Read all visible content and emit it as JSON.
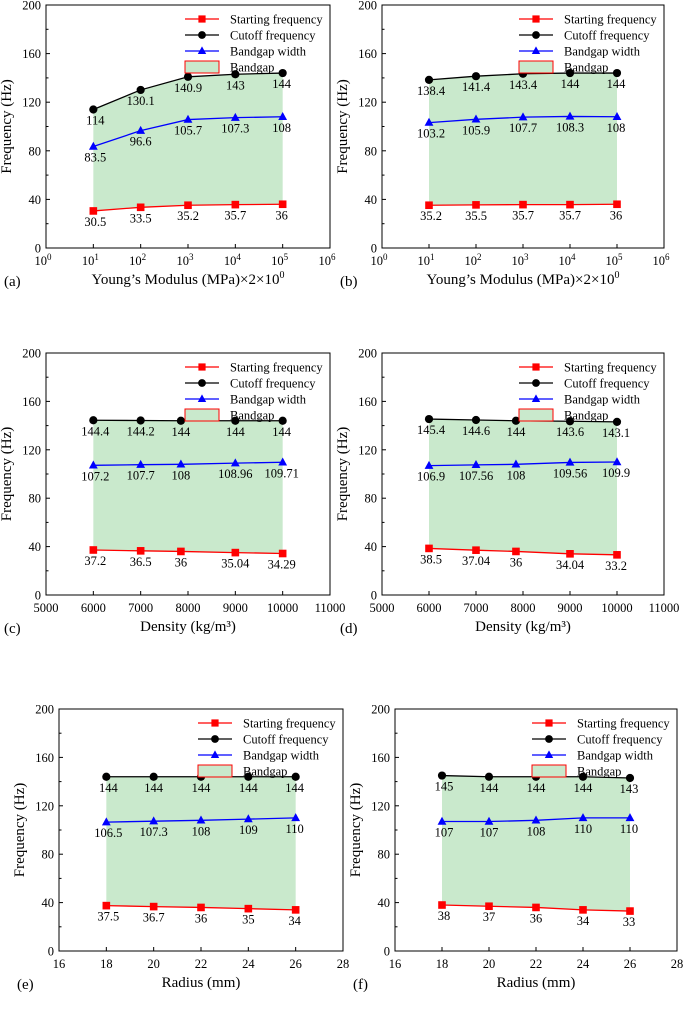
{
  "legend": {
    "starting": "Starting frequency",
    "cutoff": "Cutoff frequency",
    "width": "Bandgap width",
    "bandgap": "Bandgap"
  },
  "colors": {
    "starting": "#ff0000",
    "cutoff": "#000000",
    "width": "#0000ff",
    "bandgap_fill": "#c9e9cc",
    "bandgap_edge": "#ff0000"
  },
  "chart_data": [
    {
      "id": "a",
      "panel_label": "(a)",
      "type": "line",
      "xscale": "log",
      "ylabel": "Frequency (Hz)",
      "xlabel": "Young’s Modulus (MPa)×2×10",
      "xlabel_sup": "0",
      "xlim": [
        0,
        6
      ],
      "ylim": [
        0,
        200
      ],
      "xticks": [
        0,
        1,
        2,
        3,
        4,
        5,
        6
      ],
      "xtick_labels": [
        "10",
        "10",
        "10",
        "10",
        "10",
        "10",
        "10"
      ],
      "xtick_sups": [
        "0",
        "1",
        "2",
        "3",
        "4",
        "5",
        "6"
      ],
      "yticks": [
        0,
        40,
        80,
        120,
        160,
        200
      ],
      "x": [
        1,
        2,
        3,
        4,
        5
      ],
      "series": [
        {
          "key": "cutoff",
          "values": [
            114,
            130.1,
            140.9,
            143,
            144
          ],
          "labels": [
            "114",
            "130.1",
            "140.9",
            "143",
            "144"
          ]
        },
        {
          "key": "width",
          "values": [
            83.5,
            96.6,
            105.7,
            107.3,
            108
          ],
          "labels": [
            "83.5",
            "96.6",
            "105.7",
            "107.3",
            "108"
          ]
        },
        {
          "key": "starting",
          "values": [
            30.5,
            33.5,
            35.2,
            35.7,
            36
          ],
          "labels": [
            "30.5",
            "33.5",
            "35.2",
            "35.7",
            "36"
          ]
        }
      ]
    },
    {
      "id": "b",
      "panel_label": "(b)",
      "type": "line",
      "xscale": "log",
      "ylabel": "Frequency (Hz)",
      "xlabel": "Young’s Modulus (MPa)×2×10",
      "xlabel_sup": "0",
      "xlim": [
        0,
        6
      ],
      "ylim": [
        0,
        200
      ],
      "xticks": [
        0,
        1,
        2,
        3,
        4,
        5,
        6
      ],
      "xtick_labels": [
        "10",
        "10",
        "10",
        "10",
        "10",
        "10",
        "10"
      ],
      "xtick_sups": [
        "0",
        "1",
        "2",
        "3",
        "4",
        "5",
        "6"
      ],
      "yticks": [
        0,
        40,
        80,
        120,
        160,
        200
      ],
      "x": [
        1,
        2,
        3,
        4,
        5
      ],
      "series": [
        {
          "key": "cutoff",
          "values": [
            138.4,
            141.4,
            143.4,
            144,
            144
          ],
          "labels": [
            "138.4",
            "141.4",
            "143.4",
            "144",
            "144"
          ]
        },
        {
          "key": "width",
          "values": [
            103.2,
            105.9,
            107.7,
            108.3,
            108
          ],
          "labels": [
            "103.2",
            "105.9",
            "107.7",
            "108.3",
            "108"
          ]
        },
        {
          "key": "starting",
          "values": [
            35.2,
            35.5,
            35.7,
            35.7,
            36
          ],
          "labels": [
            "35.2",
            "35.5",
            "35.7",
            "35.7",
            "36"
          ]
        }
      ]
    },
    {
      "id": "c",
      "panel_label": "(c)",
      "type": "line",
      "xscale": "linear",
      "ylabel": "Frequency (Hz)",
      "xlabel": "Density (kg/m³)",
      "xlabel_sup": "",
      "xlim": [
        5000,
        11000
      ],
      "ylim": [
        0,
        200
      ],
      "xticks": [
        5000,
        6000,
        7000,
        8000,
        9000,
        10000,
        11000
      ],
      "xtick_labels": [
        "5000",
        "6000",
        "7000",
        "8000",
        "9000",
        "10000",
        "11000"
      ],
      "yticks": [
        0,
        40,
        80,
        120,
        160,
        200
      ],
      "x": [
        6000,
        7000,
        7850,
        9000,
        10000
      ],
      "series": [
        {
          "key": "cutoff",
          "values": [
            144.4,
            144.2,
            144,
            144,
            144
          ],
          "labels": [
            "144.4",
            "144.2",
            "144",
            "144",
            "144"
          ]
        },
        {
          "key": "width",
          "values": [
            107.2,
            107.7,
            108,
            108.96,
            109.71
          ],
          "labels": [
            "107.2",
            "107.7",
            "108",
            "108.96",
            "109.71"
          ]
        },
        {
          "key": "starting",
          "values": [
            37.2,
            36.5,
            36,
            35.04,
            34.29
          ],
          "labels": [
            "37.2",
            "36.5",
            "36",
            "35.04",
            "34.29"
          ]
        }
      ]
    },
    {
      "id": "d",
      "panel_label": "(d)",
      "type": "line",
      "xscale": "linear",
      "ylabel": "Frequency (Hz)",
      "xlabel": "Density (kg/m³)",
      "xlabel_sup": "",
      "xlim": [
        5000,
        11000
      ],
      "ylim": [
        0,
        200
      ],
      "xticks": [
        5000,
        6000,
        7000,
        8000,
        9000,
        10000,
        11000
      ],
      "xtick_labels": [
        "5000",
        "6000",
        "7000",
        "8000",
        "9000",
        "10000",
        "11000"
      ],
      "yticks": [
        0,
        40,
        80,
        120,
        160,
        200
      ],
      "x": [
        6000,
        7000,
        7850,
        9000,
        10000
      ],
      "series": [
        {
          "key": "cutoff",
          "values": [
            145.4,
            144.6,
            144,
            143.6,
            143.1
          ],
          "labels": [
            "145.4",
            "144.6",
            "144",
            "143.6",
            "143.1"
          ]
        },
        {
          "key": "width",
          "values": [
            106.9,
            107.56,
            108,
            109.56,
            109.9
          ],
          "labels": [
            "106.9",
            "107.56",
            "108",
            "109.56",
            "109.9"
          ]
        },
        {
          "key": "starting",
          "values": [
            38.5,
            37.04,
            36,
            34.04,
            33.2
          ],
          "labels": [
            "38.5",
            "37.04",
            "36",
            "34.04",
            "33.2"
          ]
        }
      ]
    },
    {
      "id": "e",
      "panel_label": "(e)",
      "type": "line",
      "xscale": "linear",
      "ylabel": "Frequency (Hz)",
      "xlabel": "Radius (mm)",
      "xlabel_sup": "",
      "xlim": [
        16,
        28
      ],
      "ylim": [
        0,
        200
      ],
      "xticks": [
        16,
        18,
        20,
        22,
        24,
        26,
        28
      ],
      "xtick_labels": [
        "16",
        "18",
        "20",
        "22",
        "24",
        "26",
        "28"
      ],
      "yticks": [
        0,
        40,
        80,
        120,
        160,
        200
      ],
      "x": [
        18,
        20,
        22,
        24,
        26
      ],
      "series": [
        {
          "key": "cutoff",
          "values": [
            144,
            144,
            144,
            144,
            144
          ],
          "labels": [
            "144",
            "144",
            "144",
            "144",
            "144"
          ]
        },
        {
          "key": "width",
          "values": [
            106.5,
            107.3,
            108,
            109,
            110
          ],
          "labels": [
            "106.5",
            "107.3",
            "108",
            "109",
            "110"
          ]
        },
        {
          "key": "starting",
          "values": [
            37.5,
            36.7,
            36,
            35,
            34
          ],
          "labels": [
            "37.5",
            "36.7",
            "36",
            "35",
            "34"
          ]
        }
      ]
    },
    {
      "id": "f",
      "panel_label": "(f)",
      "type": "line",
      "xscale": "linear",
      "ylabel": "Frequency (Hz)",
      "xlabel": "Radius (mm)",
      "xlabel_sup": "",
      "xlim": [
        16,
        28
      ],
      "ylim": [
        0,
        200
      ],
      "xticks": [
        16,
        18,
        20,
        22,
        24,
        26,
        28
      ],
      "xtick_labels": [
        "16",
        "18",
        "20",
        "22",
        "24",
        "26",
        "28"
      ],
      "yticks": [
        0,
        40,
        80,
        120,
        160,
        200
      ],
      "x": [
        18,
        20,
        22,
        24,
        26
      ],
      "series": [
        {
          "key": "cutoff",
          "values": [
            145,
            144,
            144,
            144,
            143
          ],
          "labels": [
            "145",
            "144",
            "144",
            "144",
            "143"
          ]
        },
        {
          "key": "width",
          "values": [
            107,
            107,
            108,
            110,
            110
          ],
          "labels": [
            "107",
            "107",
            "108",
            "110",
            "110"
          ]
        },
        {
          "key": "starting",
          "values": [
            38,
            37,
            36,
            34,
            33
          ],
          "labels": [
            "38",
            "37",
            "36",
            "34",
            "33"
          ]
        }
      ]
    }
  ]
}
